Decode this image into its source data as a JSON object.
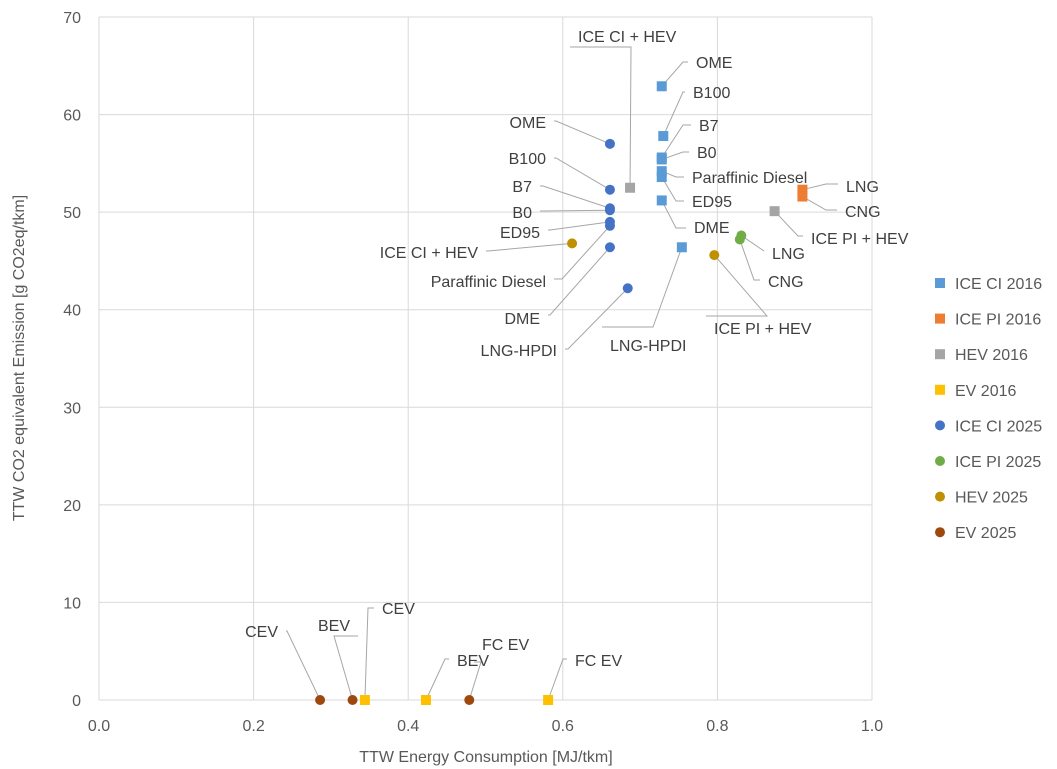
{
  "chart_data": {
    "type": "scatter",
    "title": "",
    "xlabel": "TTW Energy Consumption [MJ/tkm]",
    "ylabel": "TTW CO2 equivalent Emission [g CO2eq/tkm]",
    "xlim": [
      0,
      1.0
    ],
    "ylim": [
      0,
      70
    ],
    "x_ticks": [
      "0.0",
      "0.2",
      "0.4",
      "0.6",
      "0.8",
      "1.0"
    ],
    "y_ticks": [
      "0",
      "10",
      "20",
      "30",
      "40",
      "50",
      "60",
      "70"
    ],
    "grid": true,
    "legend_position": "right",
    "series": [
      {
        "name": "ICE CI 2016",
        "marker": "square",
        "color": "#5b9bd5",
        "points": [
          {
            "x": 0.728,
            "y": 62.9,
            "label": "OME"
          },
          {
            "x": 0.73,
            "y": 57.8,
            "label": "B100"
          },
          {
            "x": 0.728,
            "y": 55.6,
            "label": "B7"
          },
          {
            "x": 0.728,
            "y": 55.4,
            "label": "B0"
          },
          {
            "x": 0.728,
            "y": 54.2,
            "label": "Paraffinic Diesel"
          },
          {
            "x": 0.728,
            "y": 53.6,
            "label": "ED95"
          },
          {
            "x": 0.728,
            "y": 51.2,
            "label": "DME"
          },
          {
            "x": 0.754,
            "y": 46.4,
            "label": "LNG-HPDI"
          }
        ]
      },
      {
        "name": "ICE PI 2016",
        "marker": "square",
        "color": "#ed7d31",
        "points": [
          {
            "x": 0.91,
            "y": 52.3,
            "label": "LNG"
          },
          {
            "x": 0.91,
            "y": 51.6,
            "label": "CNG"
          }
        ]
      },
      {
        "name": "HEV 2016",
        "marker": "square",
        "color": "#a5a5a5",
        "points": [
          {
            "x": 0.687,
            "y": 52.5,
            "label": "ICE CI + HEV"
          },
          {
            "x": 0.874,
            "y": 50.1,
            "label": "ICE PI + HEV"
          }
        ]
      },
      {
        "name": "EV 2016",
        "marker": "square",
        "color": "#ffc000",
        "points": [
          {
            "x": 0.344,
            "y": 0,
            "label": "CEV"
          },
          {
            "x": 0.423,
            "y": 0,
            "label": "BEV"
          },
          {
            "x": 0.581,
            "y": 0,
            "label": "FC EV"
          }
        ]
      },
      {
        "name": "ICE CI 2025",
        "marker": "circle",
        "color": "#4472c4",
        "points": [
          {
            "x": 0.661,
            "y": 57.0,
            "label": "OME"
          },
          {
            "x": 0.661,
            "y": 52.3,
            "label": "B100"
          },
          {
            "x": 0.661,
            "y": 50.4,
            "label": "B7"
          },
          {
            "x": 0.661,
            "y": 50.2,
            "label": "B0"
          },
          {
            "x": 0.661,
            "y": 49.0,
            "label": "ED95"
          },
          {
            "x": 0.661,
            "y": 48.6,
            "label": "Paraffinic Diesel"
          },
          {
            "x": 0.661,
            "y": 46.4,
            "label": "DME"
          },
          {
            "x": 0.684,
            "y": 42.2,
            "label": "LNG-HPDI"
          }
        ]
      },
      {
        "name": "ICE PI 2025",
        "marker": "circle",
        "color": "#70ad47",
        "points": [
          {
            "x": 0.831,
            "y": 47.6,
            "label": "LNG"
          },
          {
            "x": 0.829,
            "y": 47.2,
            "label": "CNG"
          }
        ]
      },
      {
        "name": "HEV 2025",
        "marker": "circle",
        "color": "#bf9000",
        "points": [
          {
            "x": 0.612,
            "y": 46.8,
            "label": "ICE CI + HEV"
          },
          {
            "x": 0.796,
            "y": 45.6,
            "label": "ICE PI + HEV"
          }
        ]
      },
      {
        "name": "EV 2025",
        "marker": "circle",
        "color": "#9e480e",
        "points": [
          {
            "x": 0.286,
            "y": 0,
            "label": "CEV"
          },
          {
            "x": 0.328,
            "y": 0,
            "label": "BEV"
          },
          {
            "x": 0.479,
            "y": 0,
            "label": "FC EV"
          }
        ]
      }
    ]
  }
}
